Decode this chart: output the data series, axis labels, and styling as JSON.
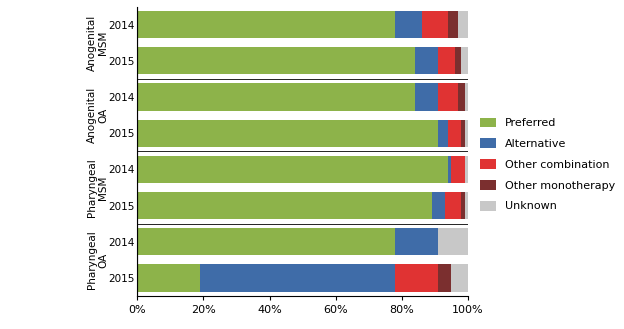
{
  "bar_labels": [
    "2014",
    "2015",
    "2014",
    "2015",
    "2014",
    "2015",
    "2014",
    "2015"
  ],
  "group_labels": [
    "Anogenital\nMSM",
    "Anogenital\nOA",
    "Pharyngeal\nMSM",
    "Pharyngeal\nOA"
  ],
  "series": {
    "Preferred": [
      0.78,
      0.84,
      0.84,
      0.91,
      0.94,
      0.89,
      0.78,
      0.19
    ],
    "Alternative": [
      0.08,
      0.07,
      0.07,
      0.03,
      0.01,
      0.04,
      0.13,
      0.59
    ],
    "Other combination": [
      0.08,
      0.05,
      0.06,
      0.04,
      0.04,
      0.05,
      0.0,
      0.13
    ],
    "Other monotherapy": [
      0.03,
      0.02,
      0.02,
      0.01,
      0.0,
      0.01,
      0.0,
      0.04
    ],
    "Unknown": [
      0.03,
      0.02,
      0.01,
      0.01,
      0.01,
      0.01,
      0.09,
      0.05
    ]
  },
  "colors": {
    "Preferred": "#8db34a",
    "Alternative": "#3f6ca8",
    "Other combination": "#e03333",
    "Other monotherapy": "#7b2f2f",
    "Unknown": "#c8c8c8"
  },
  "legend_order": [
    "Preferred",
    "Alternative",
    "Other combination",
    "Other monotherapy",
    "Unknown"
  ],
  "xlim": [
    0,
    1.0
  ],
  "xticks": [
    0,
    0.2,
    0.4,
    0.6,
    0.8,
    1.0
  ],
  "xticklabels": [
    "0%",
    "20%",
    "40%",
    "60%",
    "80%",
    "100%"
  ],
  "figsize": [
    6.24,
    3.29
  ],
  "dpi": 100,
  "bar_height": 0.75
}
